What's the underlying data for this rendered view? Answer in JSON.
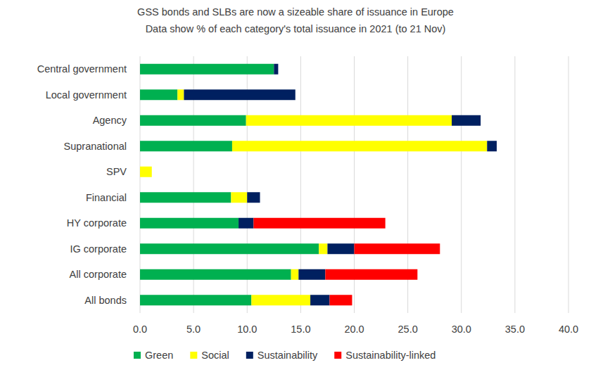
{
  "chart_data": {
    "type": "bar",
    "orientation": "horizontal",
    "stacked": true,
    "grid": true,
    "legend": "bottom",
    "title": "GSS bonds and SLBs are now a sizeable share of issuance in Europe",
    "subtitle": "Data show % of each category's total issuance in 2021 (to 21 Nov)",
    "categories": [
      "Central government",
      "Local government",
      "Agency",
      "Supranational",
      "SPV",
      "Financial",
      "HY corporate",
      "IG corporate",
      "All corporate",
      "All bonds"
    ],
    "series": [
      {
        "name": "Green",
        "color": "#00b050",
        "values": [
          12.5,
          3.5,
          9.9,
          8.6,
          0,
          8.5,
          9.2,
          16.7,
          14.1,
          10.4
        ]
      },
      {
        "name": "Social",
        "color": "#ffff00",
        "values": [
          0,
          0.6,
          19.2,
          23.8,
          1.1,
          1.5,
          0,
          0.8,
          0.7,
          5.5
        ]
      },
      {
        "name": "Sustainability",
        "color": "#002060",
        "values": [
          0.4,
          10.4,
          2.7,
          0.9,
          0,
          1.2,
          1.4,
          2.5,
          2.5,
          1.8
        ]
      },
      {
        "name": "Sustainability-linked",
        "color": "#ff0000",
        "values": [
          0,
          0,
          0,
          0,
          0,
          0,
          12.3,
          8.0,
          8.6,
          2.1
        ]
      }
    ],
    "xlim": [
      0,
      40
    ],
    "xticks": [
      {
        "value": 0,
        "label": "0.0"
      },
      {
        "value": 5,
        "label": "5.0"
      },
      {
        "value": 10,
        "label": "10.0"
      },
      {
        "value": 15,
        "label": "15.0"
      },
      {
        "value": 20,
        "label": "20.0"
      },
      {
        "value": 25,
        "label": "25.0"
      },
      {
        "value": 30,
        "label": "30.0"
      },
      {
        "value": 35,
        "label": "35.0"
      },
      {
        "value": 40,
        "label": "40.0"
      }
    ]
  }
}
